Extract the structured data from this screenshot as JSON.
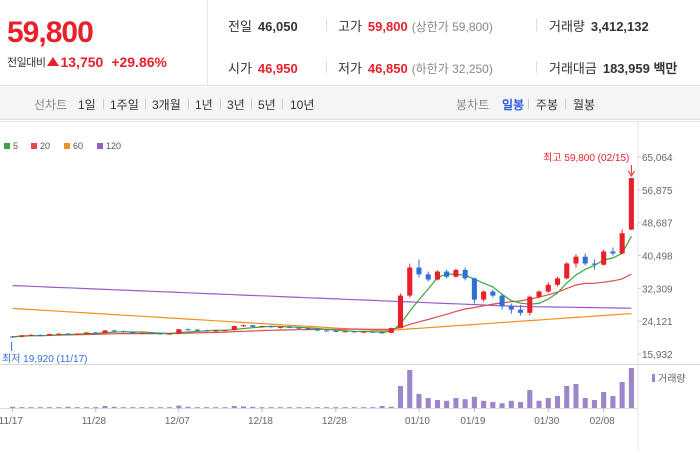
{
  "summary": {
    "price": "59,800",
    "change_label": "전일대비",
    "change_amount": "13,750",
    "change_percent": "+29.86%",
    "prev_close_label": "전일",
    "prev_close": "46,050",
    "high_label": "고가",
    "high": "59,800",
    "upper_limit": "(상한가 59,800)",
    "volume_label": "거래량",
    "volume": "3,412,132",
    "open_label": "시가",
    "open": "46,950",
    "low_label": "저가",
    "low": "46,850",
    "lower_limit": "(하한가 32,250)",
    "amount_label": "거래대금",
    "amount": "183,959 백만"
  },
  "tabs": {
    "line_title": "선차트",
    "line_items": [
      "1일",
      "1주일",
      "3개월",
      "1년",
      "3년",
      "5년",
      "10년"
    ],
    "candle_title": "봉차트",
    "candle_items": [
      "일봉",
      "주봉",
      "월봉"
    ],
    "candle_active": "일봉"
  },
  "colors": {
    "up": "#e8202a",
    "down": "#2f6fd6",
    "ma5": "#3aa63a",
    "ma20": "#e04c4c",
    "ma60": "#f0901e",
    "ma120": "#9a5cc8",
    "volume": "#9a86c8",
    "accent": "#2a5bd7"
  },
  "chart_data": {
    "type": "candlestick",
    "legend": [
      {
        "name": "5",
        "color": "#3aa63a"
      },
      {
        "name": "20",
        "color": "#e04c4c"
      },
      {
        "name": "60",
        "color": "#f0901e"
      },
      {
        "name": "120",
        "color": "#9a5cc8"
      }
    ],
    "y_ticks": [
      "65,064",
      "56,875",
      "48,687",
      "40,498",
      "32,309",
      "24,121",
      "15,932"
    ],
    "y_tick_values": [
      65064,
      56875,
      48687,
      40498,
      32309,
      24121,
      15932
    ],
    "ylim": [
      15932,
      65064
    ],
    "x_ticks": [
      "11/17",
      "11/28",
      "12/07",
      "12/18",
      "12/28",
      "01/10",
      "01/19",
      "01/30",
      "02/08"
    ],
    "high_annotation": "최고 59,800 (02/15)",
    "low_annotation": "최저 19,920 (11/17)",
    "volume_label": "거래량",
    "candles": [
      [
        20300,
        20400,
        19920,
        20200
      ],
      [
        20200,
        20700,
        20100,
        20600
      ],
      [
        20600,
        20900,
        20500,
        20700
      ],
      [
        20700,
        20800,
        20400,
        20500
      ],
      [
        20500,
        21000,
        20400,
        20900
      ],
      [
        20900,
        21100,
        20800,
        21000
      ],
      [
        21000,
        21200,
        20800,
        20900
      ],
      [
        20900,
        21100,
        20700,
        21000
      ],
      [
        21000,
        21400,
        20900,
        21300
      ],
      [
        21300,
        21500,
        21100,
        21200
      ],
      [
        21200,
        21900,
        21100,
        21800
      ],
      [
        21800,
        22000,
        21500,
        21600
      ],
      [
        21600,
        21800,
        21300,
        21400
      ],
      [
        21400,
        21500,
        21000,
        21100
      ],
      [
        21100,
        21300,
        20900,
        21200
      ],
      [
        21200,
        21400,
        21000,
        21100
      ],
      [
        21100,
        21200,
        20800,
        20900
      ],
      [
        20900,
        21200,
        20800,
        21000
      ],
      [
        21000,
        22200,
        20900,
        22100
      ],
      [
        22100,
        22300,
        21800,
        22000
      ],
      [
        22000,
        22200,
        21700,
        21800
      ],
      [
        21800,
        22000,
        21500,
        21700
      ],
      [
        21700,
        21900,
        21500,
        21800
      ],
      [
        21800,
        22000,
        21600,
        21900
      ],
      [
        21900,
        23000,
        21800,
        22900
      ],
      [
        22900,
        23300,
        22700,
        23100
      ],
      [
        23100,
        23200,
        22600,
        22700
      ],
      [
        22700,
        23000,
        22500,
        22900
      ],
      [
        22900,
        23000,
        22500,
        22600
      ],
      [
        22600,
        22800,
        22300,
        22700
      ],
      [
        22700,
        22900,
        22400,
        22500
      ],
      [
        22500,
        22600,
        22100,
        22300
      ],
      [
        22300,
        22400,
        21900,
        22100
      ],
      [
        22100,
        22200,
        21600,
        21800
      ],
      [
        21800,
        22000,
        21500,
        21700
      ],
      [
        21700,
        21900,
        21400,
        21500
      ],
      [
        21500,
        21700,
        21300,
        21600
      ],
      [
        21600,
        21700,
        21200,
        21400
      ],
      [
        21400,
        21600,
        21200,
        21500
      ],
      [
        21500,
        21700,
        21200,
        21300
      ],
      [
        21300,
        21500,
        21100,
        21200
      ],
      [
        21200,
        22500,
        21100,
        22400
      ],
      [
        22400,
        31000,
        22300,
        30500
      ],
      [
        30500,
        38500,
        30000,
        37500
      ],
      [
        37500,
        39500,
        35000,
        35800
      ],
      [
        35800,
        36500,
        34000,
        34500
      ],
      [
        34500,
        36800,
        34300,
        36500
      ],
      [
        36500,
        37000,
        34800,
        35200
      ],
      [
        35200,
        37200,
        35000,
        36900
      ],
      [
        36900,
        37500,
        34300,
        34800
      ],
      [
        34800,
        35000,
        28500,
        29500
      ],
      [
        29500,
        31800,
        29000,
        31500
      ],
      [
        31500,
        32000,
        30000,
        30500
      ],
      [
        30500,
        31000,
        27000,
        27800
      ],
      [
        27800,
        28500,
        26000,
        27000
      ],
      [
        27000,
        28200,
        25500,
        26200
      ],
      [
        26200,
        30500,
        25500,
        30200
      ],
      [
        30200,
        31800,
        29800,
        31500
      ],
      [
        31500,
        33800,
        31200,
        33200
      ],
      [
        33200,
        35200,
        32800,
        34800
      ],
      [
        34800,
        38800,
        34500,
        38500
      ],
      [
        38500,
        40800,
        37500,
        40200
      ],
      [
        40200,
        41000,
        38000,
        38500
      ],
      [
        38500,
        39500,
        37000,
        38200
      ],
      [
        38200,
        42000,
        38000,
        41500
      ],
      [
        41500,
        42500,
        40500,
        41000
      ],
      [
        41000,
        47000,
        40800,
        46050
      ],
      [
        46950,
        59800,
        46850,
        59800
      ]
    ],
    "volume": [
      0.03,
      0.02,
      0.02,
      0.02,
      0.02,
      0.02,
      0.03,
      0.02,
      0.02,
      0.02,
      0.05,
      0.03,
      0.02,
      0.02,
      0.02,
      0.02,
      0.02,
      0.02,
      0.06,
      0.03,
      0.02,
      0.02,
      0.02,
      0.02,
      0.05,
      0.04,
      0.03,
      0.02,
      0.02,
      0.02,
      0.02,
      0.02,
      0.02,
      0.02,
      0.02,
      0.02,
      0.02,
      0.02,
      0.02,
      0.02,
      0.05,
      0.03,
      0.55,
      0.95,
      0.35,
      0.25,
      0.2,
      0.18,
      0.25,
      0.22,
      0.28,
      0.18,
      0.15,
      0.12,
      0.18,
      0.15,
      0.45,
      0.18,
      0.25,
      0.3,
      0.55,
      0.6,
      0.25,
      0.2,
      0.4,
      0.3,
      0.65,
      1.0
    ]
  }
}
